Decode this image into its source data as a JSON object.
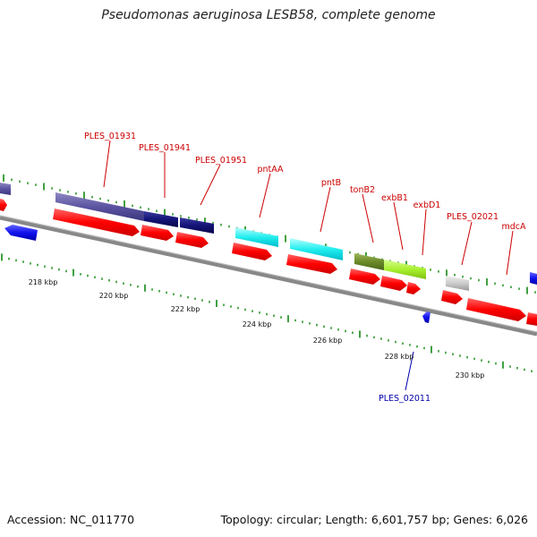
{
  "title": "Pseudomonas aeruginosa LESB58, complete genome",
  "footer": {
    "accession": "Accession: NC_011770",
    "summary": "Topology: circular; Length: 6,601,757 bp; Genes: 6,026"
  },
  "scale_labels": [
    "218 kbp",
    "220 kbp",
    "222 kbp",
    "224 kbp",
    "226 kbp",
    "228 kbp",
    "230 kbp"
  ],
  "gene_labels": [
    {
      "text": "PLES_01931",
      "color": "#cc0000"
    },
    {
      "text": "PLES_01941",
      "color": "#cc0000"
    },
    {
      "text": "PLES_01951",
      "color": "#cc0000"
    },
    {
      "text": "pntAA",
      "color": "#cc0000"
    },
    {
      "text": "pntB",
      "color": "#cc0000"
    },
    {
      "text": "tonB2",
      "color": "#cc0000"
    },
    {
      "text": "exbB1",
      "color": "#cc0000"
    },
    {
      "text": "exbD1",
      "color": "#cc0000"
    },
    {
      "text": "PLES_02021",
      "color": "#cc0000"
    },
    {
      "text": "mdcA",
      "color": "#cc0000"
    },
    {
      "text": "PLES_02011",
      "color": "#0000aa"
    }
  ],
  "colors": {
    "cds_forward": "#ff0000",
    "cds_reverse": "#1111ee",
    "backbone": "#888888",
    "ticks": "#118811"
  }
}
